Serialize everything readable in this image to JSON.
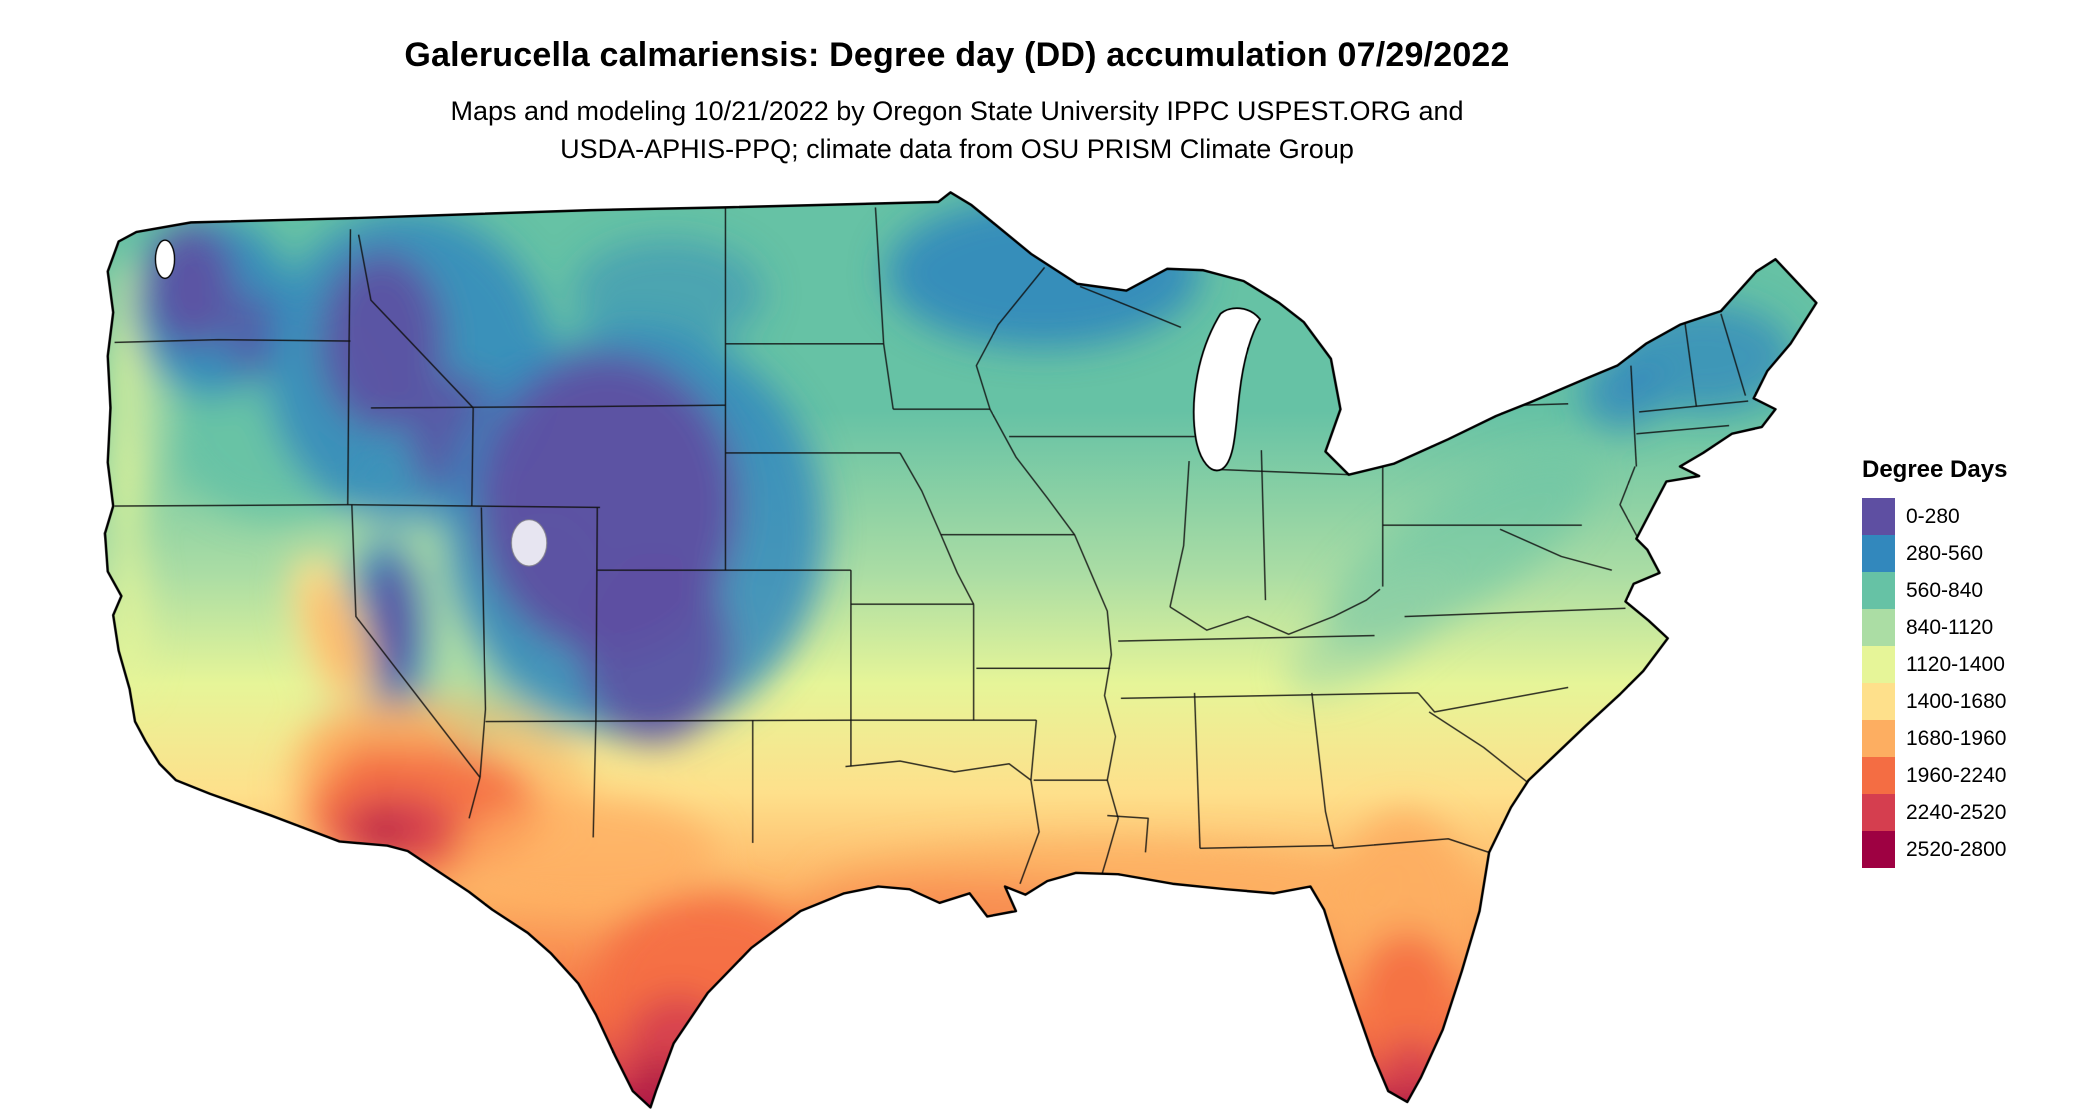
{
  "title": "Galerucella calmariensis: Degree day (DD) accumulation 07/29/2022",
  "subtitle_lines": [
    "Maps and modeling 10/21/2022 by Oregon State University IPPC USPEST.ORG and",
    "USDA-APHIS-PPQ; climate data from OSU PRISM Climate Group"
  ],
  "legend": {
    "title": "Degree Days",
    "entries": [
      {
        "label": "0-280",
        "color": "#5e4fa2"
      },
      {
        "label": "280-560",
        "color": "#3288bd"
      },
      {
        "label": "560-840",
        "color": "#66c2a5"
      },
      {
        "label": "840-1120",
        "color": "#abdda4"
      },
      {
        "label": "1120-1400",
        "color": "#e6f598"
      },
      {
        "label": "1400-1680",
        "color": "#fee08b"
      },
      {
        "label": "1680-1960",
        "color": "#fdae61"
      },
      {
        "label": "1960-2240",
        "color": "#f46d43"
      },
      {
        "label": "2240-2520",
        "color": "#d53e4f"
      },
      {
        "label": "2520-2800",
        "color": "#9e0142"
      }
    ]
  }
}
